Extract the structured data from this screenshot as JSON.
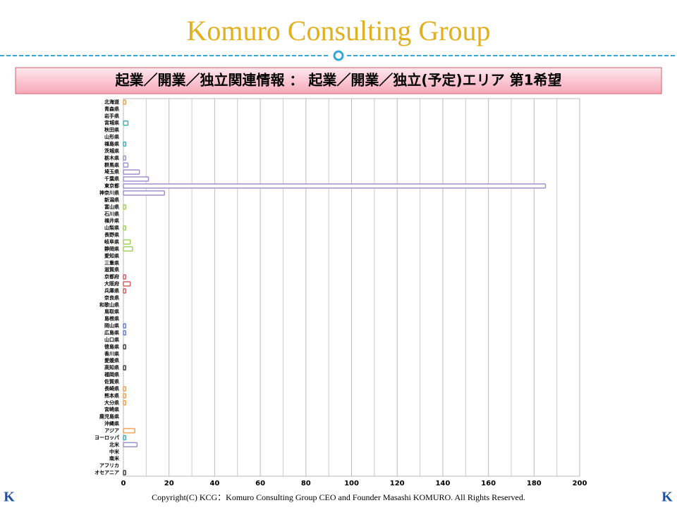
{
  "header": {
    "title": "Komuro Consulting Group",
    "subtitle": "起業／開業／独立関連情報 ： 起業／開業／独立(予定)エリア 第1希望"
  },
  "chart_data": {
    "type": "barh",
    "categories": [
      "北海道",
      "青森県",
      "岩手県",
      "宮城県",
      "秋田県",
      "山形県",
      "福島県",
      "茨城県",
      "栃木県",
      "群馬県",
      "埼玉県",
      "千葉県",
      "東京都",
      "神奈川県",
      "新潟県",
      "富山県",
      "石川県",
      "福井県",
      "山梨県",
      "長野県",
      "岐阜県",
      "静岡県",
      "愛知県",
      "三重県",
      "滋賀県",
      "京都府",
      "大阪府",
      "兵庫県",
      "奈良県",
      "和歌山県",
      "鳥取県",
      "島根県",
      "岡山県",
      "広島県",
      "山口県",
      "徳島県",
      "香川県",
      "愛媛県",
      "高知県",
      "福岡県",
      "佐賀県",
      "長崎県",
      "熊本県",
      "大分県",
      "宮崎県",
      "鹿児島県",
      "沖縄県",
      "アジア",
      "ヨーロッパ",
      "北米",
      "中米",
      "南米",
      "アフリカ",
      "オセアニア"
    ],
    "values": [
      1,
      0,
      0,
      2,
      0,
      0,
      1,
      0,
      1,
      2,
      7,
      11,
      185,
      18,
      0,
      1,
      0,
      0,
      1,
      0,
      3,
      4,
      0,
      0,
      0,
      1,
      3,
      1,
      0,
      0,
      0,
      0,
      1,
      1,
      0,
      1,
      0,
      0,
      1,
      0,
      0,
      1,
      1,
      1,
      0,
      0,
      0,
      5,
      1,
      6,
      0,
      0,
      0,
      1
    ],
    "colors": [
      "#f0a050",
      "#40b0c0",
      "#40b0c0",
      "#40b0c0",
      "#40b0c0",
      "#40b0c0",
      "#40b0c0",
      "#a090d0",
      "#a090d0",
      "#a090d0",
      "#a090d0",
      "#a090d0",
      "#a090d0",
      "#a090d0",
      "#a0d060",
      "#a0d060",
      "#a0d060",
      "#a0d060",
      "#a0d060",
      "#a0d060",
      "#a0d060",
      "#a0d060",
      "#a0d060",
      "#d06060",
      "#d06060",
      "#d06060",
      "#d06060",
      "#d06060",
      "#d06060",
      "#d06060",
      "#6080d0",
      "#6080d0",
      "#6080d0",
      "#6080d0",
      "#6080d0",
      "#404040",
      "#404040",
      "#404040",
      "#404040",
      "#f0a050",
      "#f0a050",
      "#f0a050",
      "#f0a050",
      "#f0a050",
      "#f0a050",
      "#f0a050",
      "#f0a050",
      "#f0a050",
      "#40b0c0",
      "#a090d0",
      "#a0d060",
      "#d06060",
      "#6080d0",
      "#404040"
    ],
    "xlim": [
      0,
      200
    ],
    "xticks": [
      0,
      20,
      40,
      60,
      80,
      100,
      120,
      140,
      160,
      180,
      200
    ],
    "minor_xticks": [
      10,
      30,
      50,
      70,
      90,
      110,
      130,
      150,
      170,
      190
    ],
    "grid": true
  },
  "footer": {
    "copyright": "Copyright(C) KCG：Komuro Consulting Group CEO and Founder Masashi KOMURO. All Rights Reserved.",
    "logo_left": "K",
    "logo_right": "K"
  }
}
